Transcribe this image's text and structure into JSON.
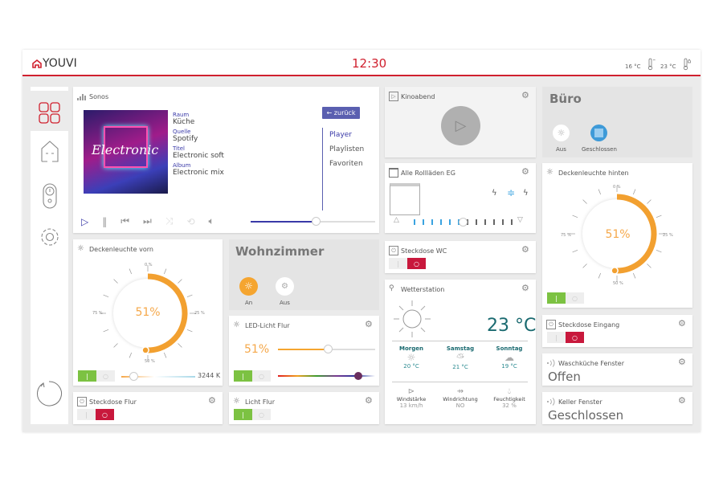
{
  "header": {
    "brand": "YOUVI",
    "time": "12:30",
    "outdoor_temp": "16 °C",
    "indoor_temp": "23 °C",
    "accent": "#d0202e"
  },
  "sidebar": {
    "items": [
      {
        "name": "dashboard",
        "active": true
      },
      {
        "name": "home"
      },
      {
        "name": "remote"
      },
      {
        "name": "settings"
      }
    ]
  },
  "sonos": {
    "title": "Sonos",
    "cover_text": "Electronic",
    "fields": [
      {
        "label": "Raum",
        "value": "Küche"
      },
      {
        "label": "Quelle",
        "value": "Spotify"
      },
      {
        "label": "Titel",
        "value": "Electronic soft"
      },
      {
        "label": "Album",
        "value": "Electronic mix"
      }
    ],
    "back": "← zurück",
    "menu": [
      "Player",
      "Playlisten",
      "Favoriten"
    ],
    "active_menu": "Player",
    "volume": 0.52
  },
  "kino": {
    "title": "Kinoabend"
  },
  "buero": {
    "title": "Büro",
    "light": "Aus",
    "blind": "Geschlossen"
  },
  "rolllaeden": {
    "title": "Alle Rollläden EG",
    "position": 0.5
  },
  "hinten": {
    "title": "Deckenleuchte hinten",
    "value": "51%",
    "ticks": [
      "0 %",
      "25 %",
      "50 %",
      "75 %"
    ],
    "level": 51,
    "on": true
  },
  "vorn": {
    "title": "Deckenleuchte vorn",
    "value": "51%",
    "ticks": [
      "0 %",
      "25 %",
      "50 %",
      "75 %"
    ],
    "level": 51,
    "on": true,
    "color_temp": "3244 K"
  },
  "wohnzimmer": {
    "title": "Wohnzimmer",
    "light": "An",
    "scene": "Aus"
  },
  "led": {
    "title": "LED-Licht Flur",
    "value": "51%",
    "level": 51,
    "hue": 0.83,
    "on": true
  },
  "steckdose_wc": {
    "title": "Steckdose WC",
    "on": false
  },
  "wetter": {
    "title": "Wetterstation",
    "temp": "23 °C",
    "forecast": [
      {
        "day": "Morgen",
        "temp": "20 °C"
      },
      {
        "day": "Samstag",
        "temp": "21 °C"
      },
      {
        "day": "Sonntag",
        "temp": "19 °C"
      }
    ],
    "stats": [
      {
        "label": "Windstärke",
        "value": "13 km/h"
      },
      {
        "label": "Windrichtung",
        "value": "NO"
      },
      {
        "label": "Feuchtigkeit",
        "value": "32 %"
      }
    ]
  },
  "steckdose_eingang": {
    "title": "Steckdose Eingang",
    "on": false
  },
  "waschkueche": {
    "title": "Waschküche Fenster",
    "state": "Offen"
  },
  "keller": {
    "title": "Keller Fenster",
    "state": "Geschlossen"
  },
  "steckdose_flur": {
    "title": "Steckdose Flur",
    "on": false
  },
  "licht_flur": {
    "title": "Licht Flur",
    "on": true
  }
}
